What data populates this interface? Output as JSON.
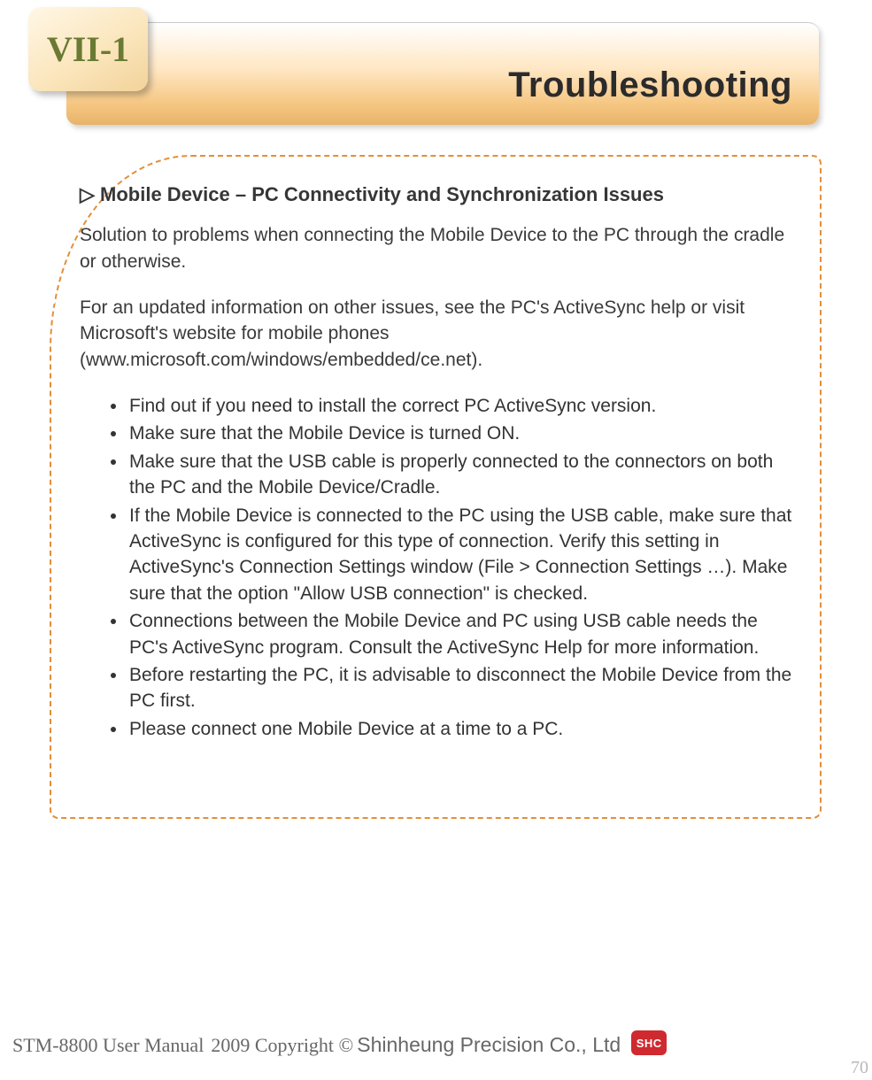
{
  "page": {
    "chapter_label": "VII-1",
    "title": "Troubleshooting",
    "page_number": "70"
  },
  "content": {
    "heading": "▷ Mobile Device – PC Connectivity and Synchronization Issues",
    "para1": "Solution to problems when connecting the Mobile Device to the PC through the cradle or otherwise.",
    "para2": "For an updated information on other issues, see the PC's ActiveSync help or visit Microsoft's website for mobile phones (www.microsoft.com/windows/embedded/ce.net).",
    "bullets": [
      "Find out if you need to install the correct PC ActiveSync version.",
      "Make sure that the Mobile Device is turned ON.",
      "Make sure that the USB cable is properly connected to the connectors on both the PC and the Mobile Device/Cradle.",
      "If the Mobile Device is connected to the PC using the USB cable, make sure that ActiveSync is configured for this type of connection. Verify this setting in ActiveSync's Connection Settings window (File > Connection Settings …). Make sure that the option \"Allow USB connection\" is checked.",
      "Connections between the Mobile Device and PC using USB cable needs the PC's ActiveSync program. Consult the ActiveSync Help for more information.",
      "Before restarting the PC, it is advisable to disconnect the Mobile Device from the PC first.",
      "Please connect one Mobile Device at a time to a PC."
    ]
  },
  "footer": {
    "manual": "STM-8800 User Manual",
    "copyright": "2009 Copyright ©",
    "company": "Shinheung Precision Co., Ltd",
    "logo_text": "SHC"
  },
  "colors": {
    "banner_gradient_top": "#ffffff",
    "banner_gradient_mid": "#ffe7c4",
    "banner_gradient_bottom": "#e8b36a",
    "tab_gradient_top": "#fff7e6",
    "tab_gradient_bottom": "#f2d39a",
    "chapter_text": "#6a7a34",
    "dashed_border": "#e38f3a",
    "body_text": "#3a3a3a",
    "footer_text": "#676767",
    "logo_bg": "#cf2a2f",
    "page_num_color": "#b8b8b8"
  }
}
